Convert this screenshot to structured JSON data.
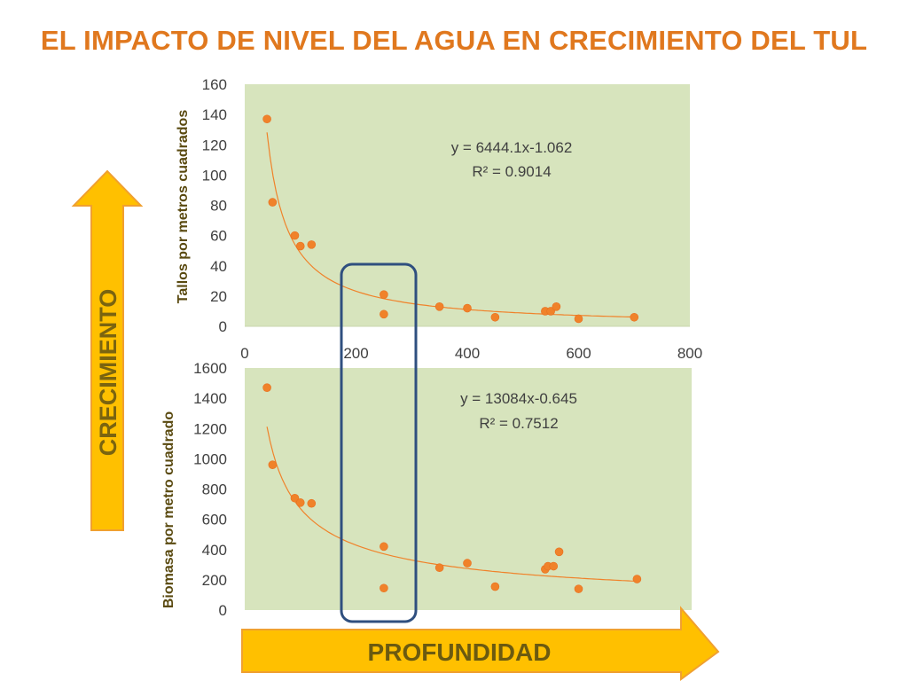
{
  "title": "EL IMPACTO DE NIVEL DEL AGUA EN CRECIMIENTO DEL TUL",
  "side_label": "CRECIMIENTO",
  "bottom_label": "PROFUNDIDAD",
  "colors": {
    "title": "#e0781e",
    "plot_bg": "#d7e4bd",
    "points": "#f0822a",
    "trend": "#f0822a",
    "arrow": "#ffc000",
    "highlight_box": "#2f4f7f"
  },
  "chart_data": [
    {
      "type": "scatter",
      "ylabel": "Tallos  por metros cuadrados",
      "xlim": [
        0,
        800
      ],
      "ylim": [
        0,
        160
      ],
      "xticks": [
        "0",
        "200",
        "400",
        "600",
        "800"
      ],
      "yticks": [
        "0",
        "20",
        "40",
        "60",
        "80",
        "100",
        "120",
        "140",
        "160"
      ],
      "points": [
        [
          40,
          137
        ],
        [
          50,
          82
        ],
        [
          90,
          60
        ],
        [
          100,
          53
        ],
        [
          120,
          54
        ],
        [
          250,
          21
        ],
        [
          250,
          8
        ],
        [
          350,
          13
        ],
        [
          400,
          12
        ],
        [
          450,
          6
        ],
        [
          540,
          10
        ],
        [
          550,
          10
        ],
        [
          560,
          13
        ],
        [
          600,
          5
        ],
        [
          700,
          6
        ]
      ],
      "trendline": {
        "type": "power",
        "a": 6444.1,
        "b": -1.062
      },
      "equation": "y = 6444.1x-1.062",
      "r2": "R² = 0.9014"
    },
    {
      "type": "scatter",
      "ylabel": "Biomasa por metro cuadrado",
      "xlim": [
        0,
        800
      ],
      "ylim": [
        0,
        1600
      ],
      "yticks": [
        "0",
        "200",
        "400",
        "600",
        "800",
        "1000",
        "1200",
        "1400",
        "1600"
      ],
      "points": [
        [
          40,
          1470
        ],
        [
          50,
          960
        ],
        [
          90,
          740
        ],
        [
          100,
          710
        ],
        [
          120,
          705
        ],
        [
          250,
          420
        ],
        [
          250,
          145
        ],
        [
          350,
          280
        ],
        [
          400,
          310
        ],
        [
          450,
          155
        ],
        [
          540,
          270
        ],
        [
          545,
          290
        ],
        [
          555,
          290
        ],
        [
          565,
          385
        ],
        [
          600,
          140
        ],
        [
          705,
          205
        ]
      ],
      "trendline": {
        "type": "power",
        "a": 13084,
        "b": -0.645
      },
      "equation": "y = 13084x-0.645",
      "r2": "R² = 0.7512"
    }
  ]
}
